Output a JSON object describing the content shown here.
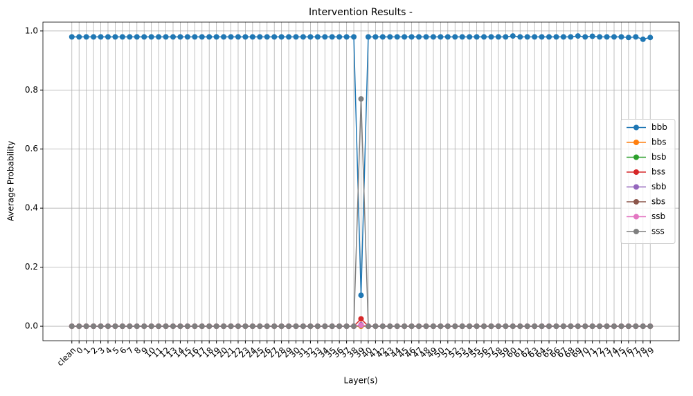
{
  "chart_data": {
    "type": "line",
    "title": "Intervention Results -",
    "xlabel": "Layer(s)",
    "ylabel": "Average Probability",
    "categories": [
      "clean",
      "0",
      "1",
      "2",
      "3",
      "4",
      "5",
      "6",
      "7",
      "8",
      "9",
      "10",
      "11",
      "12",
      "13",
      "14",
      "15",
      "16",
      "17",
      "18",
      "19",
      "20",
      "21",
      "22",
      "23",
      "24",
      "25",
      "26",
      "27",
      "28",
      "29",
      "30",
      "31",
      "32",
      "33",
      "34",
      "35",
      "36",
      "37",
      "38",
      "39",
      "40",
      "41",
      "42",
      "43",
      "44",
      "45",
      "46",
      "47",
      "48",
      "49",
      "50",
      "51",
      "52",
      "53",
      "54",
      "55",
      "56",
      "57",
      "58",
      "59",
      "60",
      "61",
      "62",
      "63",
      "64",
      "65",
      "66",
      "67",
      "68",
      "69",
      "70",
      "71",
      "72",
      "73",
      "74",
      "75",
      "76",
      "77",
      "78",
      "79"
    ],
    "ylim": [
      -0.049,
      1.03
    ],
    "yticks": [
      {
        "value": 0,
        "label": "0.0"
      },
      0.2,
      0.4,
      0.6,
      0.8,
      {
        "value": 1,
        "label": "1.0"
      }
    ],
    "grid": true,
    "legend": "center right",
    "series": [
      {
        "name": "bbb",
        "color": "#1f77b4",
        "values": [
          0.98,
          0.98,
          0.98,
          0.98,
          0.98,
          0.98,
          0.98,
          0.98,
          0.98,
          0.98,
          0.98,
          0.98,
          0.98,
          0.98,
          0.98,
          0.98,
          0.98,
          0.98,
          0.98,
          0.98,
          0.98,
          0.98,
          0.98,
          0.98,
          0.98,
          0.98,
          0.98,
          0.98,
          0.98,
          0.98,
          0.98,
          0.98,
          0.98,
          0.98,
          0.98,
          0.98,
          0.98,
          0.98,
          0.98,
          0.98,
          0.105,
          0.98,
          0.98,
          0.98,
          0.98,
          0.98,
          0.98,
          0.98,
          0.98,
          0.98,
          0.98,
          0.98,
          0.98,
          0.98,
          0.98,
          0.98,
          0.98,
          0.98,
          0.98,
          0.98,
          0.98,
          0.983,
          0.98,
          0.98,
          0.98,
          0.98,
          0.98,
          0.98,
          0.98,
          0.98,
          0.983,
          0.98,
          0.982,
          0.98,
          0.98,
          0.98,
          0.98,
          0.978,
          0.98,
          0.972,
          0.978
        ]
      },
      {
        "name": "bbs",
        "color": "#ff7f0e",
        "values": [
          0,
          0,
          0,
          0,
          0,
          0,
          0,
          0,
          0,
          0,
          0,
          0,
          0,
          0,
          0,
          0,
          0,
          0,
          0,
          0,
          0,
          0,
          0,
          0,
          0,
          0,
          0,
          0,
          0,
          0,
          0,
          0,
          0,
          0,
          0,
          0,
          0,
          0,
          0,
          0,
          0,
          0,
          0,
          0,
          0,
          0,
          0,
          0,
          0,
          0,
          0,
          0,
          0,
          0,
          0,
          0,
          0,
          0,
          0,
          0,
          0,
          0,
          0,
          0,
          0,
          0,
          0,
          0,
          0,
          0,
          0,
          0,
          0,
          0,
          0,
          0,
          0,
          0,
          0,
          0,
          0
        ]
      },
      {
        "name": "bsb",
        "color": "#2ca02c",
        "values": [
          0,
          0,
          0,
          0,
          0,
          0,
          0,
          0,
          0,
          0,
          0,
          0,
          0,
          0,
          0,
          0,
          0,
          0,
          0,
          0,
          0,
          0,
          0,
          0,
          0,
          0,
          0,
          0,
          0,
          0,
          0,
          0,
          0,
          0,
          0,
          0,
          0,
          0,
          0,
          0,
          0.002,
          0,
          0,
          0,
          0,
          0,
          0,
          0,
          0,
          0,
          0,
          0,
          0,
          0,
          0,
          0,
          0,
          0,
          0,
          0,
          0,
          0,
          0,
          0,
          0,
          0,
          0,
          0,
          0,
          0,
          0,
          0,
          0,
          0,
          0,
          0,
          0,
          0,
          0,
          0,
          0
        ]
      },
      {
        "name": "bss",
        "color": "#d62728",
        "values": [
          0,
          0,
          0,
          0,
          0,
          0,
          0,
          0,
          0,
          0,
          0,
          0,
          0,
          0,
          0,
          0,
          0,
          0,
          0,
          0,
          0,
          0,
          0,
          0,
          0,
          0,
          0,
          0,
          0,
          0,
          0,
          0,
          0,
          0,
          0,
          0,
          0,
          0,
          0,
          0,
          0.025,
          0,
          0,
          0,
          0,
          0,
          0,
          0,
          0,
          0,
          0,
          0,
          0,
          0,
          0,
          0,
          0,
          0,
          0,
          0,
          0,
          0,
          0,
          0,
          0,
          0,
          0,
          0,
          0,
          0,
          0,
          0,
          0,
          0,
          0,
          0,
          0,
          0,
          0,
          0,
          0
        ]
      },
      {
        "name": "sbb",
        "color": "#9467bd",
        "values": [
          0,
          0,
          0,
          0,
          0,
          0,
          0,
          0,
          0,
          0,
          0,
          0,
          0,
          0,
          0,
          0,
          0,
          0,
          0,
          0,
          0,
          0,
          0,
          0,
          0,
          0,
          0,
          0,
          0,
          0,
          0,
          0,
          0,
          0,
          0,
          0,
          0,
          0,
          0,
          0,
          0.005,
          0,
          0,
          0,
          0,
          0,
          0,
          0,
          0,
          0,
          0,
          0,
          0,
          0,
          0,
          0,
          0,
          0,
          0,
          0,
          0,
          0,
          0,
          0,
          0,
          0,
          0,
          0,
          0,
          0,
          0,
          0,
          0,
          0,
          0,
          0,
          0,
          0,
          0,
          0,
          0
        ]
      },
      {
        "name": "sbs",
        "color": "#8c564b",
        "values": [
          0,
          0,
          0,
          0,
          0,
          0,
          0,
          0,
          0,
          0,
          0,
          0,
          0,
          0,
          0,
          0,
          0,
          0,
          0,
          0,
          0,
          0,
          0,
          0,
          0,
          0,
          0,
          0,
          0,
          0,
          0,
          0,
          0,
          0,
          0,
          0,
          0,
          0,
          0,
          0,
          0.003,
          0,
          0,
          0,
          0,
          0,
          0,
          0,
          0,
          0,
          0,
          0,
          0,
          0,
          0,
          0,
          0,
          0,
          0,
          0,
          0,
          0,
          0,
          0,
          0,
          0,
          0,
          0,
          0,
          0,
          0,
          0,
          0,
          0,
          0,
          0,
          0,
          0,
          0,
          0,
          0
        ]
      },
      {
        "name": "ssb",
        "color": "#e377c2",
        "values": [
          0,
          0,
          0,
          0,
          0,
          0,
          0,
          0,
          0,
          0,
          0,
          0,
          0,
          0,
          0,
          0,
          0,
          0,
          0,
          0,
          0,
          0,
          0,
          0,
          0,
          0,
          0,
          0,
          0,
          0,
          0,
          0,
          0,
          0,
          0,
          0,
          0,
          0,
          0,
          0,
          0.003,
          0,
          0,
          0,
          0,
          0,
          0,
          0,
          0,
          0,
          0,
          0,
          0,
          0,
          0,
          0,
          0,
          0,
          0,
          0,
          0,
          0,
          0,
          0,
          0,
          0,
          0,
          0,
          0,
          0,
          0,
          0,
          0,
          0,
          0,
          0,
          0,
          0,
          0,
          0,
          0
        ]
      },
      {
        "name": "sss",
        "color": "#7f7f7f",
        "values": [
          0,
          0,
          0,
          0,
          0,
          0,
          0,
          0,
          0,
          0,
          0,
          0,
          0,
          0,
          0,
          0,
          0,
          0,
          0,
          0,
          0,
          0,
          0,
          0,
          0,
          0,
          0,
          0,
          0,
          0,
          0,
          0,
          0,
          0,
          0,
          0,
          0,
          0,
          0,
          0,
          0.77,
          0,
          0,
          0,
          0,
          0,
          0,
          0,
          0,
          0,
          0,
          0,
          0,
          0,
          0,
          0,
          0,
          0,
          0,
          0,
          0,
          0,
          0,
          0,
          0,
          0,
          0,
          0,
          0,
          0,
          0,
          0,
          0,
          0,
          0,
          0,
          0,
          0,
          0,
          0,
          0
        ]
      }
    ]
  }
}
